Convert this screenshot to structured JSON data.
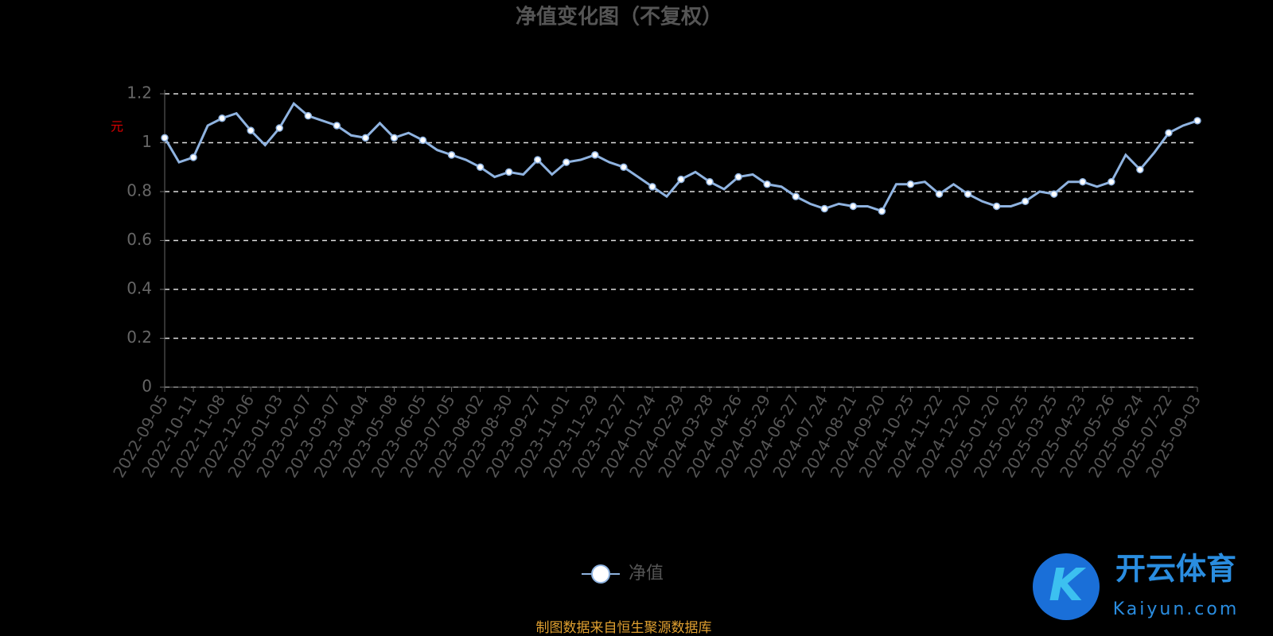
{
  "chart_data": {
    "type": "line",
    "title": "净值变化图（不复权）",
    "y_label": "元",
    "categories": [
      "2022-09-05",
      null,
      "2022-10-11",
      null,
      "2022-11-08",
      null,
      "2022-12-06",
      null,
      "2023-01-03",
      null,
      "2023-02-07",
      null,
      "2023-03-07",
      null,
      "2023-04-04",
      null,
      "2023-05-08",
      null,
      "2023-06-05",
      null,
      "2023-07-05",
      null,
      "2023-08-02",
      null,
      "2023-08-30",
      null,
      "2023-09-27",
      null,
      "2023-11-01",
      null,
      "2023-11-29",
      null,
      "2023-12-27",
      null,
      "2024-01-24",
      null,
      "2024-02-29",
      null,
      "2024-03-28",
      null,
      "2024-04-26",
      null,
      "2024-05-29",
      null,
      "2024-06-27",
      null,
      "2024-07-24",
      null,
      "2024-08-21",
      null,
      "2024-09-20",
      null,
      "2024-10-25",
      null,
      "2024-11-22",
      null,
      "2024-12-20",
      null,
      "2025-01-20",
      null,
      "2025-02-25",
      null,
      "2025-03-25",
      null,
      "2025-04-23",
      null,
      "2025-05-26",
      null,
      "2025-06-24",
      null,
      "2025-07-22",
      null,
      "2025-09-03"
    ],
    "series": [
      {
        "name": "净值",
        "color": "#8fb3e0",
        "values": [
          1.02,
          0.92,
          0.94,
          1.07,
          1.1,
          1.12,
          1.05,
          0.99,
          1.06,
          1.16,
          1.11,
          1.09,
          1.07,
          1.03,
          1.02,
          1.08,
          1.02,
          1.04,
          1.01,
          0.97,
          0.95,
          0.93,
          0.9,
          0.86,
          0.88,
          0.87,
          0.93,
          0.87,
          0.92,
          0.93,
          0.95,
          0.92,
          0.9,
          0.86,
          0.82,
          0.78,
          0.85,
          0.88,
          0.84,
          0.81,
          0.86,
          0.87,
          0.83,
          0.82,
          0.78,
          0.75,
          0.73,
          0.75,
          0.74,
          0.74,
          0.72,
          0.83,
          0.83,
          0.84,
          0.79,
          0.83,
          0.79,
          0.76,
          0.74,
          0.74,
          0.76,
          0.8,
          0.79,
          0.84,
          0.84,
          0.82,
          0.84,
          0.95,
          0.89,
          0.96,
          1.04,
          1.07,
          1.09
        ]
      }
    ],
    "ylim": [
      0,
      1.2
    ],
    "yticks": [
      0,
      0.2,
      0.4,
      0.6,
      0.8,
      1,
      1.2
    ],
    "grid": true,
    "source": "制图数据来自恒生聚源数据库",
    "watermark": {
      "brand": "开云体育",
      "site": "Kaiyun.com"
    }
  }
}
